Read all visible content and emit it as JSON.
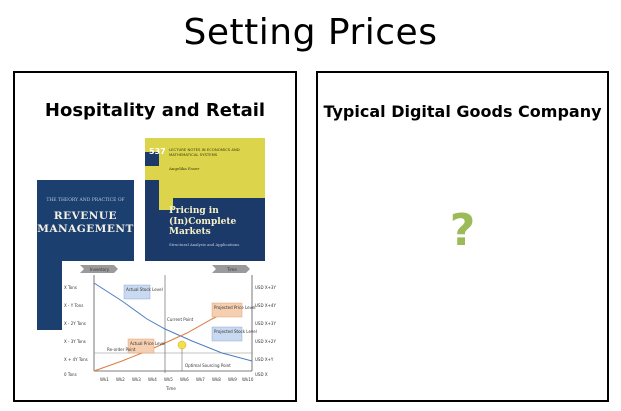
{
  "slide": {
    "title": "Setting Prices"
  },
  "left_panel": {
    "title": "Hospitality and Retail",
    "book1": {
      "small_title": "THE THEORY AND PRACTICE OF",
      "main_title": "REVENUE MANAGEMENT"
    },
    "book2": {
      "number": "537",
      "series": "LECTURE NOTES IN ECONOMICS AND MATHEMATICAL SYSTEMS",
      "author": "Angelika Esser",
      "main_title": "Pricing in (In)Complete Markets",
      "subtitle": "Structural Analysis and Applications"
    },
    "chart": {
      "arrow_left": "Inventory",
      "arrow_right": "Time",
      "y_labels_left": [
        "X Tons",
        "X - Y Tons",
        "X - 2Y Tons",
        "X - 3Y Tons",
        "X + 4Y Tons",
        "0 Tons"
      ],
      "y_labels_right": [
        "USD X+3Y",
        "USD X+4Y",
        "USD X+3Y",
        "USD X+2Y",
        "USD X+Y",
        "USD X"
      ],
      "x_labels": [
        "Wk1",
        "Wk2",
        "Wk3",
        "Wk4",
        "Wk5",
        "Wk6",
        "Wk7",
        "Wk8",
        "Wk9",
        "Wk10"
      ],
      "x_title": "Time",
      "annotations": {
        "actual_stock": "Actual Stock Level",
        "current_point": "Current Point",
        "projected_price": "Projected Price Level",
        "projected_stock": "Projected Stock Level",
        "actual_price": "Actual Price Level",
        "reorder": "Re-order Point",
        "optimal": "Optimal Sourcing Point"
      }
    }
  },
  "right_panel": {
    "title": "Typical Digital Goods Company",
    "placeholder": "?"
  },
  "colors": {
    "question_mark": "#9bbb59",
    "book1": "#1b3f6e",
    "book2_top": "#dcd44a",
    "book2_bottom": "#1c3a69"
  }
}
